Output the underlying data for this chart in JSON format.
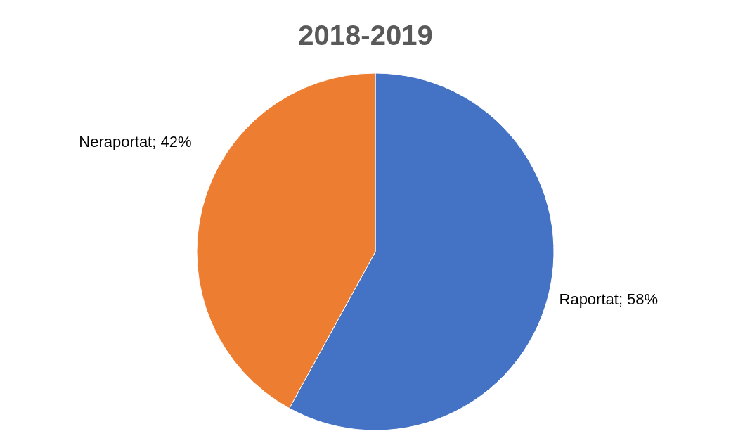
{
  "chart_data": {
    "type": "pie",
    "title": "2018-2019",
    "categories": [
      "Raportat",
      "Neraportat"
    ],
    "values": [
      58,
      42
    ],
    "value_labels": [
      "58%",
      "42%"
    ],
    "colors": [
      "#4472c4",
      "#ed7d31"
    ]
  }
}
